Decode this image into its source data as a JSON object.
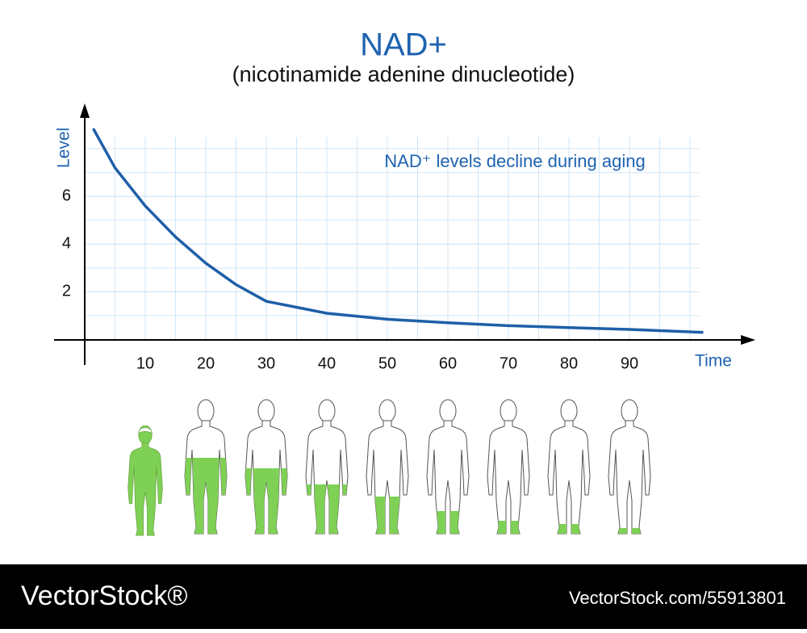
{
  "chart_data": {
    "type": "line",
    "title": "NAD+",
    "subtitle": "(nicotinamide adenine dinucleotide)",
    "annotation": "NAD⁺ levels decline during aging",
    "x_label": "Time",
    "y_label": "Level",
    "x": [
      1.5,
      5,
      10,
      15,
      20,
      25,
      30,
      40,
      50,
      60,
      70,
      80,
      90,
      102
    ],
    "series": [
      {
        "color": "#1f5fa8",
        "values": [
          8.8,
          7.2,
          5.6,
          4.3,
          3.2,
          2.3,
          1.6,
          1.1,
          0.85,
          0.7,
          0.58,
          0.5,
          0.42,
          0.3
        ]
      }
    ],
    "xlim": [
      -5,
      110
    ],
    "ylim": [
      -1,
      9.8
    ],
    "xticks": [
      10,
      20,
      30,
      40,
      50,
      60,
      70,
      80,
      90
    ],
    "yticks": [
      2,
      4,
      6
    ],
    "grid": true,
    "footer": {
      "brand": "VectorStock®",
      "url": "VectorStock.com/55913801"
    }
  }
}
